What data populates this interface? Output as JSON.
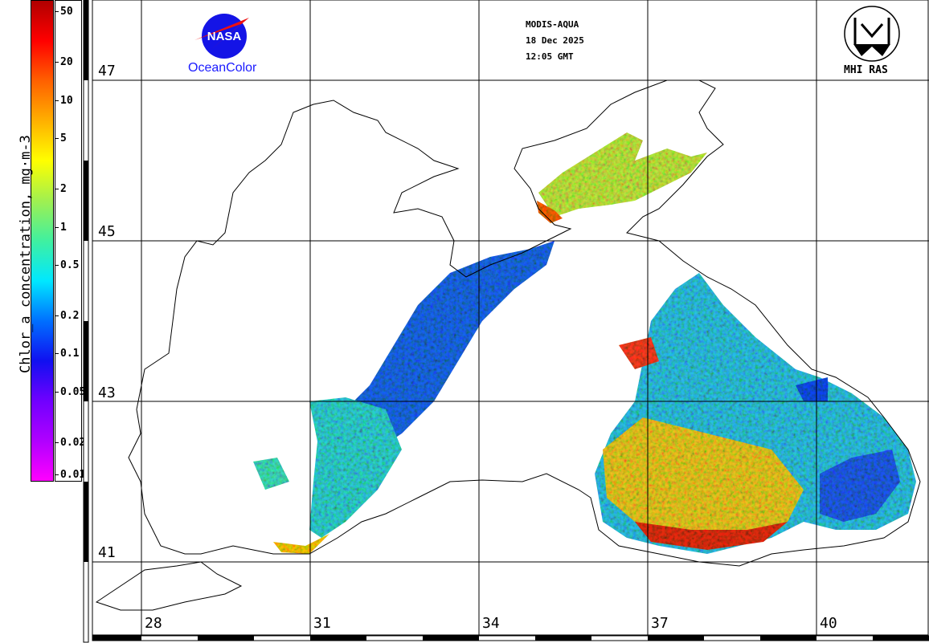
{
  "colorbar": {
    "title": "Chlor_a concentration, mg·m-3",
    "ticks": [
      "50",
      "20",
      "10",
      "5",
      "2",
      "1",
      "0.5",
      "0.2",
      "0.1",
      "0.05",
      "0.02",
      "0.01"
    ],
    "tick_values": [
      50,
      20,
      10,
      5,
      2,
      1,
      0.5,
      0.2,
      0.1,
      0.05,
      0.02,
      0.01
    ],
    "range": [
      0.01,
      60
    ],
    "scale": "log",
    "colors": [
      "#ff00ff",
      "#b000ff",
      "#7000ff",
      "#1010f0",
      "#0070ff",
      "#00e8ff",
      "#40f0a0",
      "#a0f050",
      "#ffff00",
      "#ffb000",
      "#ff6000",
      "#ff0000",
      "#b00000"
    ]
  },
  "header": {
    "sensor": "MODIS-AQUA",
    "date": "18 Dec 2025",
    "time": "12:05 GMT"
  },
  "logos": {
    "nasa": "NASA",
    "oceancolor": "OceanColor",
    "mhi": "MHI RAS"
  },
  "grid": {
    "latitudes": [
      "47",
      "45",
      "43",
      "41"
    ],
    "longitudes": [
      "28",
      "31",
      "34",
      "37",
      "40"
    ]
  }
}
